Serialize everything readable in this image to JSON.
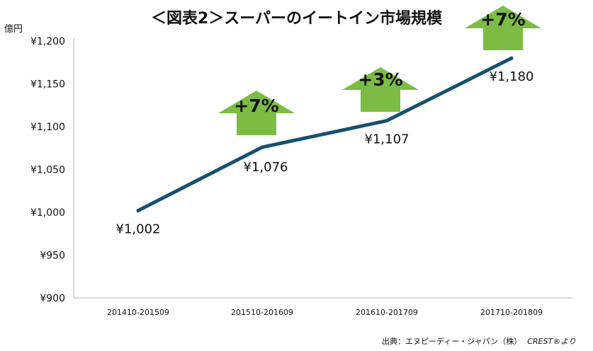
{
  "title": "＜図表2＞スーパーのイートイン市場規模",
  "unit_label": "億円",
  "source": "出典：エヌピーディー・ジャパン（株）",
  "source_company": "CREST®より",
  "colors": {
    "line": "#17506e",
    "arrow": "#7cbc45",
    "axis": "#b0b0b0",
    "text": "#111111"
  },
  "chart_data": {
    "type": "line",
    "title": "＜図表2＞スーパーのイートイン市場規模",
    "ylabel": "億円",
    "xlabel": "",
    "categories": [
      "201410-201509",
      "201510-201609",
      "201610-201709",
      "201710-201809"
    ],
    "values": [
      1002,
      1076,
      1107,
      1180
    ],
    "data_labels": [
      "¥1,002",
      "¥1,076",
      "¥1,107",
      "¥1,180"
    ],
    "growth_labels": [
      "+7%",
      "+3%",
      "+7%"
    ],
    "ylim": [
      900,
      1200
    ],
    "yticks": [
      900,
      950,
      1000,
      1050,
      1100,
      1150,
      1200
    ],
    "ytick_labels": [
      "¥900",
      "¥950",
      "¥1,000",
      "¥1,050",
      "¥1,100",
      "¥1,150",
      "¥1,200"
    ],
    "grid": false,
    "legend": "none"
  }
}
